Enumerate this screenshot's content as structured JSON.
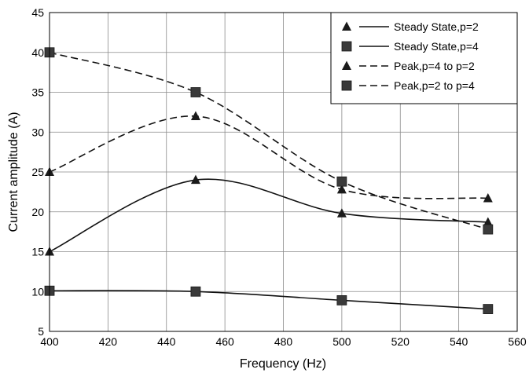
{
  "chart_data": {
    "type": "line",
    "xlabel": "Frequency (Hz)",
    "ylabel": "Current amplitude (A)",
    "xlim": [
      400,
      560
    ],
    "ylim": [
      5,
      45
    ],
    "xticks": [
      "400",
      "420",
      "440",
      "460",
      "480",
      "500",
      "520",
      "540",
      "560"
    ],
    "yticks": [
      "5",
      "10",
      "15",
      "20",
      "25",
      "30",
      "35",
      "40",
      "45"
    ],
    "grid": true,
    "legend_position": "top-right",
    "series": [
      {
        "name": "Steady State,p=2",
        "marker": "triangle",
        "line": "solid",
        "x": [
          400,
          450,
          500,
          550
        ],
        "y": [
          15,
          24,
          19.8,
          18.7
        ]
      },
      {
        "name": "Steady State,p=4",
        "marker": "square",
        "line": "solid",
        "x": [
          400,
          450,
          500,
          550
        ],
        "y": [
          10.1,
          10,
          8.9,
          7.8
        ]
      },
      {
        "name": "Peak,p=4 to p=2",
        "marker": "triangle",
        "line": "dashed",
        "x": [
          400,
          450,
          500,
          550
        ],
        "y": [
          25,
          32,
          22.8,
          21.7
        ]
      },
      {
        "name": "Peak,p=2 to p=4",
        "marker": "square",
        "line": "dashed",
        "x": [
          400,
          450,
          500,
          550
        ],
        "y": [
          40,
          35,
          23.8,
          17.8
        ]
      }
    ]
  }
}
